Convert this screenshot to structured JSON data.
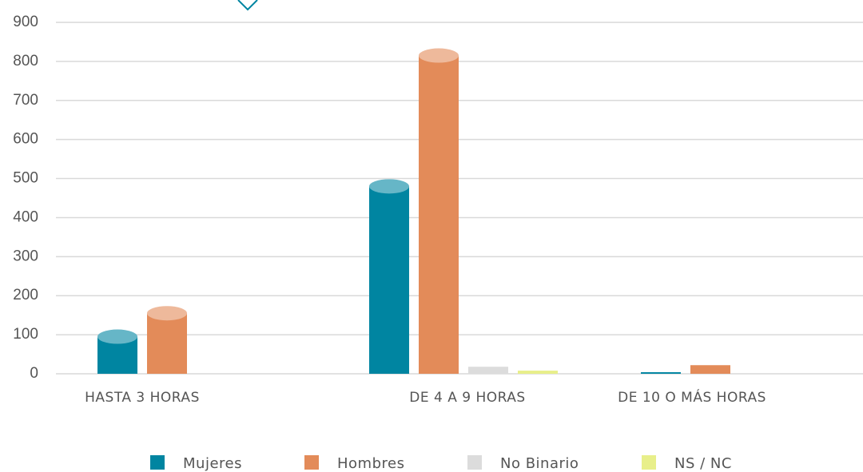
{
  "chart_data": {
    "type": "bar",
    "categories": [
      "HASTA 3 HORAS",
      "DE 4 A 9 HORAS",
      "DE 10 O MÁS HORAS"
    ],
    "series": [
      {
        "name": "Mujeres",
        "color": "#0085a1",
        "values": [
          95,
          480,
          4
        ]
      },
      {
        "name": "Hombres",
        "color": "#e38b59",
        "values": [
          155,
          815,
          22
        ]
      },
      {
        "name": "No Binario",
        "color": "#dcdcdc",
        "values": [
          0,
          18,
          0
        ]
      },
      {
        "name": "NS / NC",
        "color": "#e8ef8a",
        "values": [
          0,
          8,
          0
        ]
      }
    ],
    "ylim": [
      0,
      900
    ],
    "yticks": [
      0,
      100,
      200,
      300,
      400,
      500,
      600,
      700,
      800,
      900
    ],
    "grid": true
  }
}
